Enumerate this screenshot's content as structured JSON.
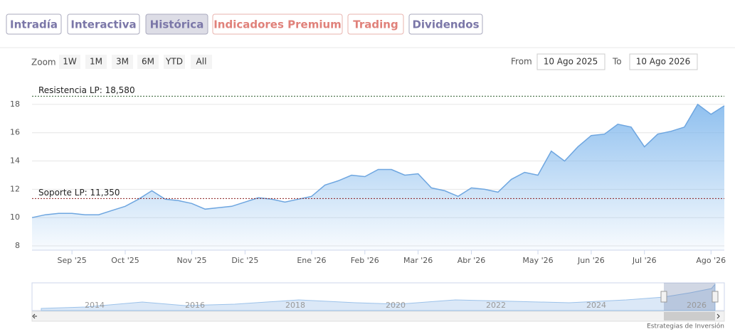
{
  "tabs": [
    "Intradía",
    "Interactiva",
    "Histórica",
    "Indicadores Premium",
    "Trading",
    "Dividendos"
  ],
  "zoom": {
    "label": "Zoom",
    "buttons": [
      "1W",
      "1M",
      "3M",
      "6M",
      "YTD",
      "All"
    ]
  },
  "range": {
    "from_label": "From",
    "from": "10 Ago 2025",
    "to_label": "To",
    "to": "10 Ago 2026"
  },
  "chart_data": {
    "type": "area",
    "categories": [
      null,
      null,
      null,
      "Sep '25",
      null,
      null,
      null,
      "Oct '25",
      null,
      null,
      null,
      null,
      "Nov '25",
      null,
      null,
      null,
      "Dic '25",
      null,
      null,
      null,
      null,
      "Ene '26",
      null,
      null,
      null,
      "Feb '26",
      null,
      null,
      null,
      "Mar '26",
      null,
      null,
      null,
      "Abr '26",
      null,
      null,
      null,
      null,
      "May '26",
      null,
      null,
      null,
      "Jun '26",
      null,
      null,
      null,
      "Jul '26",
      null,
      null,
      null,
      null,
      "Ago '26",
      null
    ],
    "values": [
      10.0,
      10.2,
      10.3,
      10.3,
      10.2,
      10.2,
      10.5,
      10.8,
      11.3,
      11.9,
      11.3,
      11.2,
      11.0,
      10.6,
      10.7,
      10.8,
      11.1,
      11.4,
      11.3,
      11.1,
      11.3,
      11.5,
      12.3,
      12.6,
      13.0,
      12.9,
      13.4,
      13.4,
      13.0,
      13.1,
      12.1,
      11.9,
      11.5,
      12.1,
      12.0,
      11.8,
      12.7,
      13.2,
      13.0,
      14.7,
      14.0,
      15.0,
      15.8,
      15.9,
      16.6,
      16.4,
      15.0,
      15.9,
      16.1,
      16.4,
      18.0,
      17.3,
      17.9
    ],
    "color": "#6ea6e0",
    "ylim": [
      7.7,
      19.1
    ],
    "yticks": [
      8,
      10,
      12,
      14,
      16,
      18
    ],
    "grid": true,
    "annotations": [
      {
        "value": 18.58,
        "label": "Resistencia LP: 18,580",
        "color": "#2f5d2f"
      },
      {
        "value": 11.35,
        "label": "Soporte LP: 11,350",
        "color": "#8b1c1c"
      }
    ]
  },
  "navigator": {
    "years": [
      "2014",
      "2016",
      "2018",
      "2020",
      "2022",
      "2024",
      "2026"
    ]
  },
  "footer": "Estrategias de Inversión"
}
